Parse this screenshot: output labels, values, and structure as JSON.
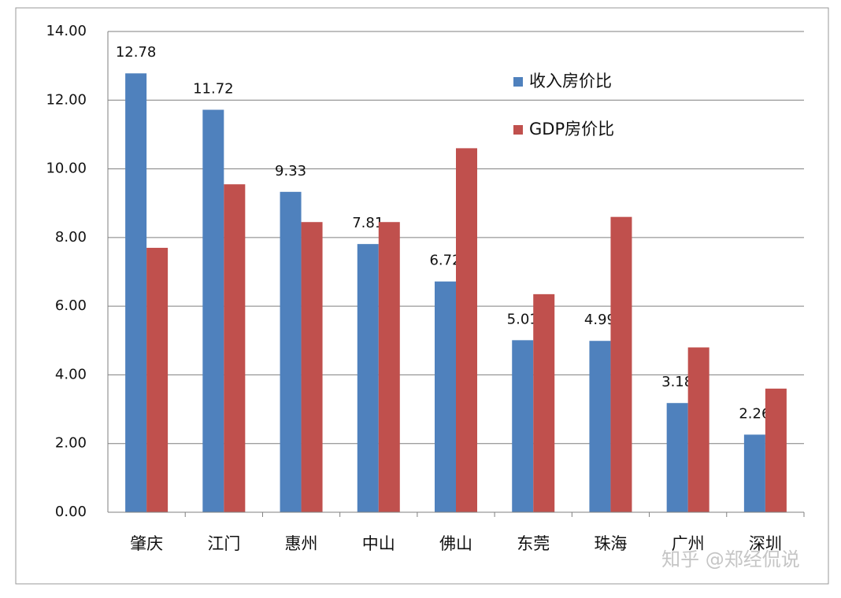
{
  "chart_data": {
    "type": "bar",
    "categories": [
      "肇庆",
      "江门",
      "惠州",
      "中山",
      "佛山",
      "东莞",
      "珠海",
      "广州",
      "深圳"
    ],
    "series": [
      {
        "name": "收入房价比",
        "color": "#4f81bd",
        "values": [
          12.78,
          11.72,
          9.33,
          7.81,
          6.72,
          5.01,
          4.99,
          3.18,
          2.26
        ],
        "data_labels": true
      },
      {
        "name": "GDP房价比",
        "color": "#c0504d",
        "values": [
          7.7,
          9.55,
          8.45,
          8.45,
          10.6,
          6.35,
          8.6,
          4.8,
          3.6
        ],
        "data_labels": false
      }
    ],
    "ylim": [
      0,
      14
    ],
    "yticks": [
      {
        "value": 0,
        "label": "0.00"
      },
      {
        "value": 2,
        "label": "2.00"
      },
      {
        "value": 4,
        "label": "4.00"
      },
      {
        "value": 6,
        "label": "6.00"
      },
      {
        "value": 8,
        "label": "8.00"
      },
      {
        "value": 10,
        "label": "10.00"
      },
      {
        "value": 12,
        "label": "12.00"
      },
      {
        "value": 14,
        "label": "14.00"
      }
    ],
    "grid": true,
    "legend": "upper-right",
    "watermark": "知乎 @郑经侃说"
  }
}
